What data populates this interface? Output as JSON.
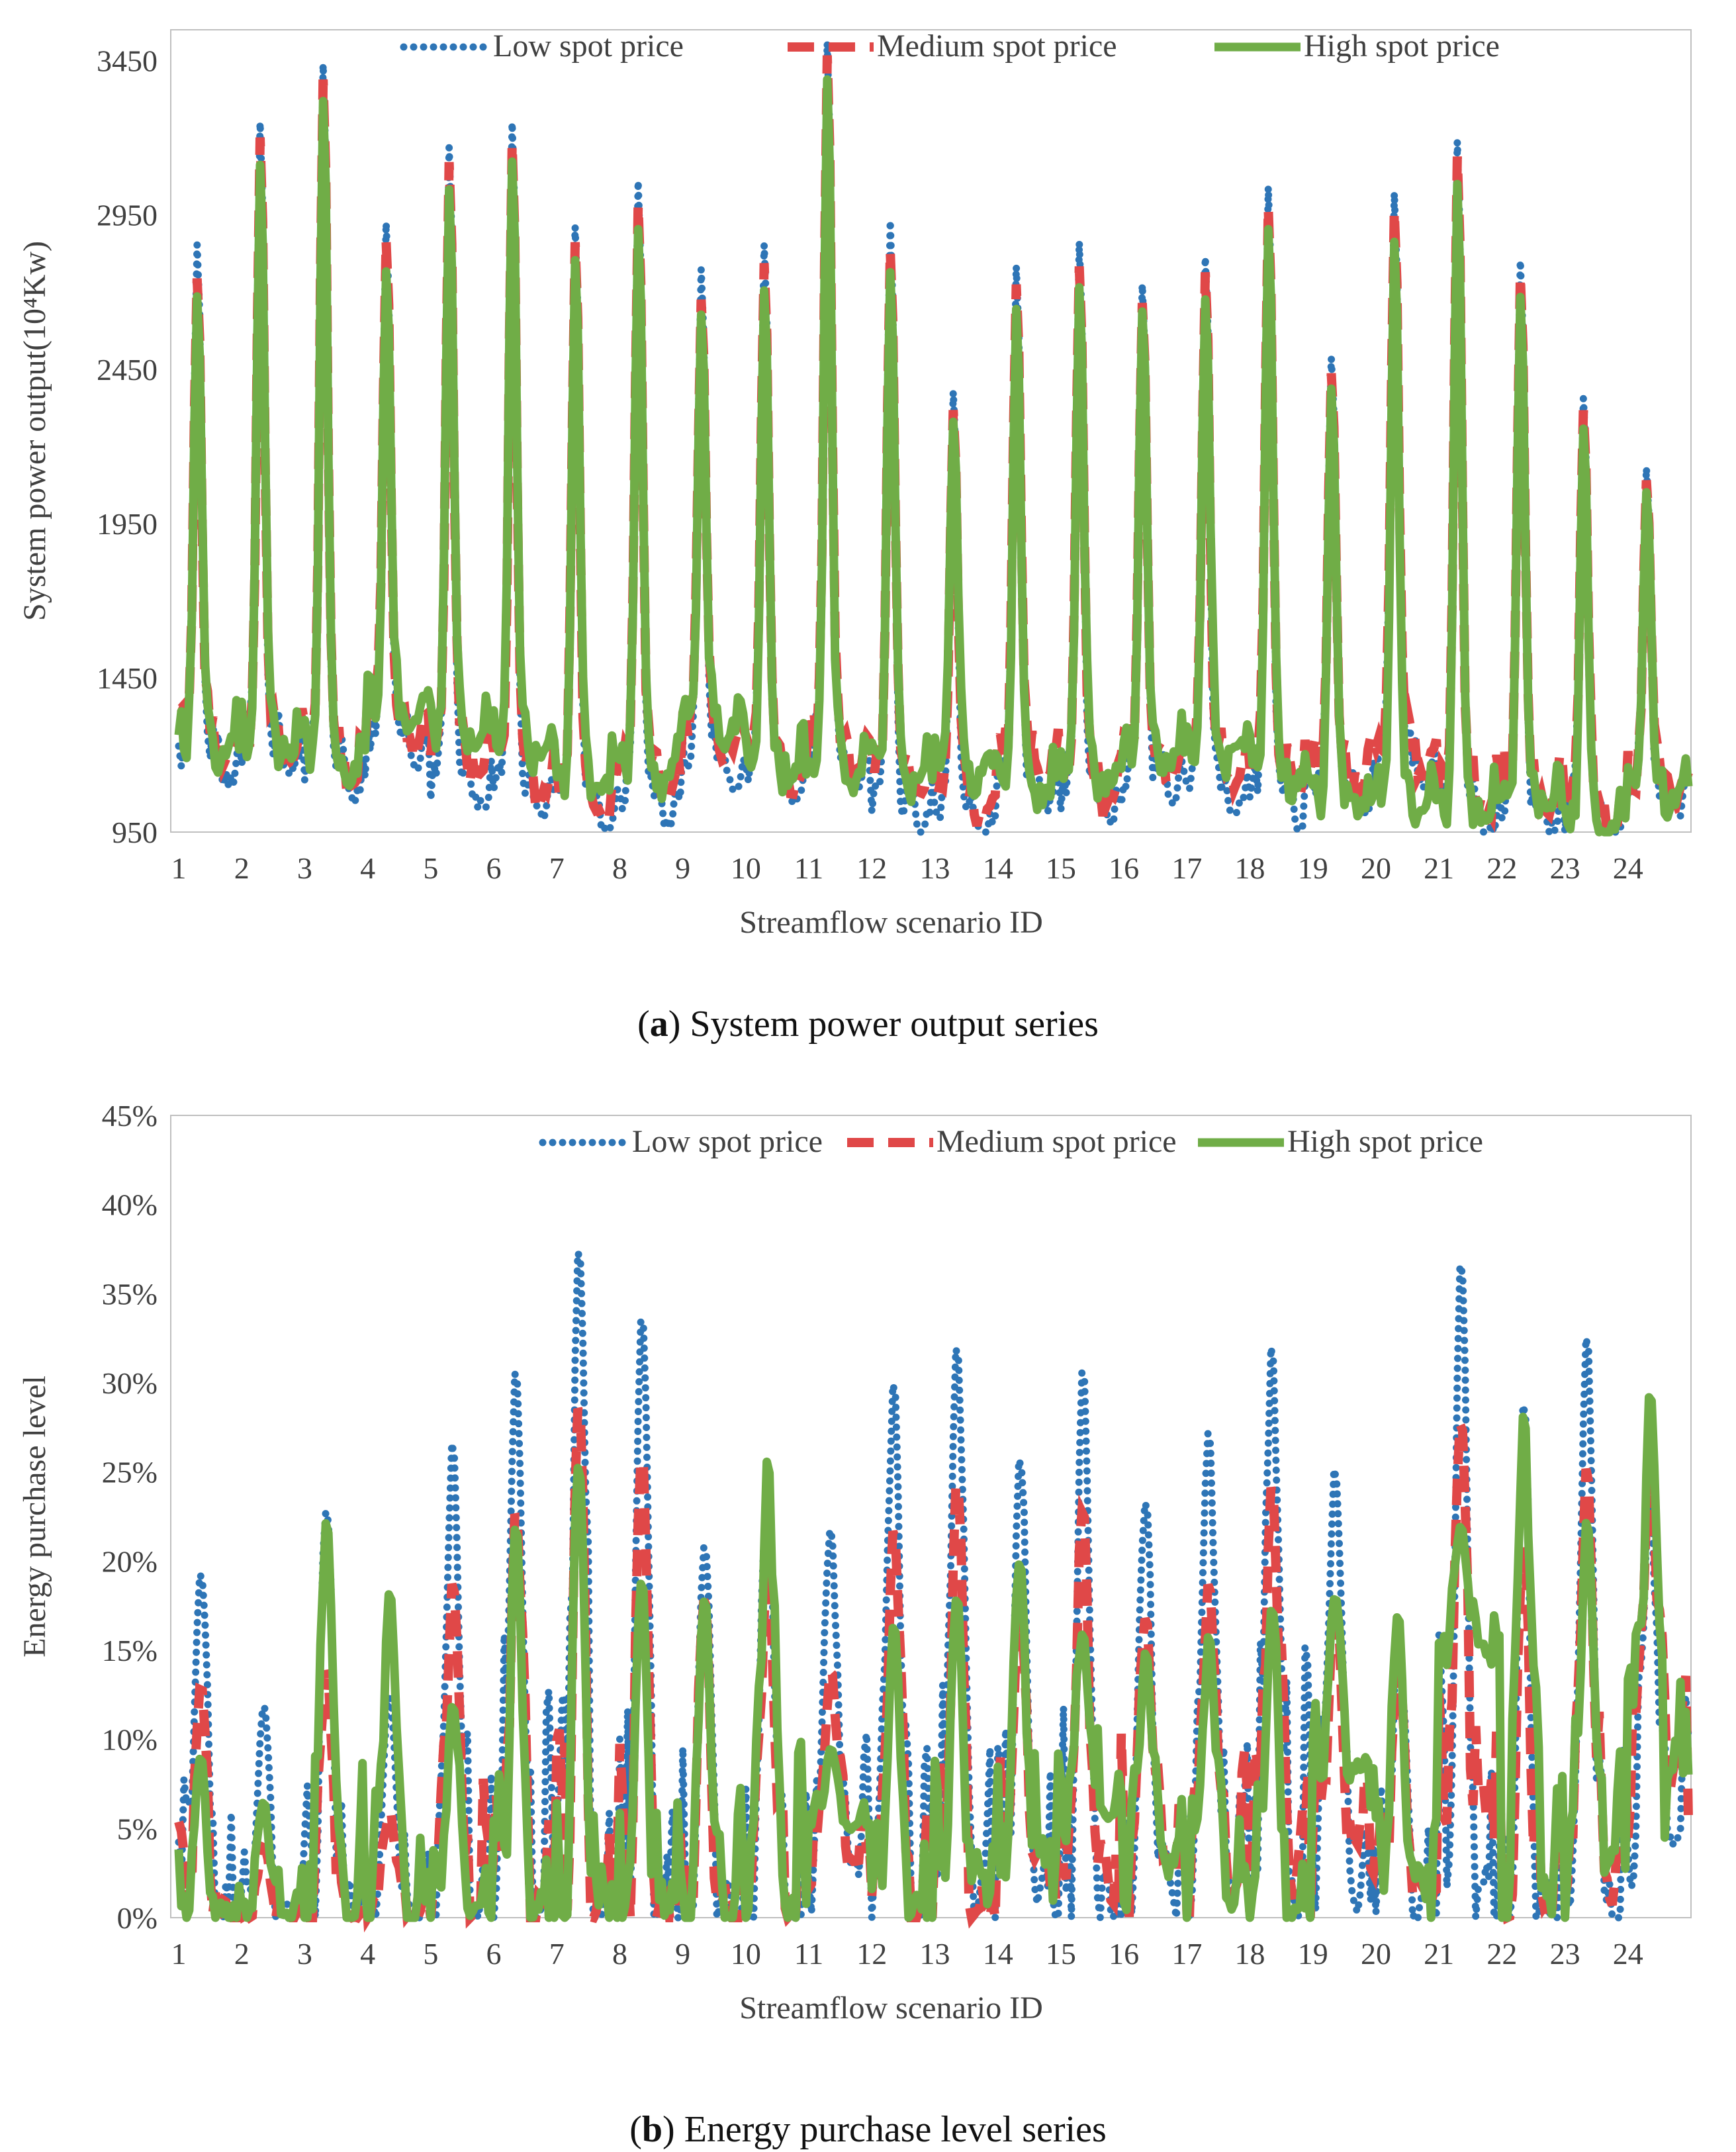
{
  "captions": {
    "a": {
      "letter": "a",
      "text": " System power output series"
    },
    "b": {
      "letter": "b",
      "text": " Energy purchase level series"
    }
  },
  "colors": {
    "low": "#2e75b6",
    "medium": "#e04848",
    "high": "#70ad47",
    "axis": "#bfbfbf",
    "text": "#404040"
  },
  "chart_data": [
    {
      "id": "a",
      "type": "line",
      "title": "",
      "xlabel": "Streamflow  scenario  ID",
      "ylabel": "System power output(10⁴Kw)",
      "ylim": [
        950,
        3550
      ],
      "yticks": [
        950,
        1450,
        1950,
        2450,
        2950,
        3450
      ],
      "ytick_labels": [
        "950",
        "1450",
        "1950",
        "2450",
        "2950",
        "3450"
      ],
      "x": [
        1,
        2,
        3,
        4,
        5,
        6,
        7,
        8,
        9,
        10,
        11,
        12,
        13,
        14,
        15,
        16,
        17,
        18,
        19,
        20,
        21,
        22,
        23,
        24
      ],
      "legend": [
        "Low spot price",
        "Medium spot price",
        "High  spot price"
      ],
      "legend_position": "top",
      "grid": false,
      "series": [
        {
          "name": "Low spot price",
          "style": "dotted",
          "peaks": [
            2870,
            3270,
            3460,
            2940,
            3190,
            3270,
            2930,
            3080,
            2790,
            2870,
            3530,
            2950,
            2390,
            2800,
            2880,
            2740,
            2830,
            3060,
            2500,
            3040,
            3210,
            2820,
            2370,
            2140
          ],
          "troughs": [
            1110,
            1130,
            1040,
            1170,
            1020,
            990,
            960,
            960,
            1100,
            1040,
            1090,
            940,
            930,
            1030,
            980,
            1060,
            1010,
            970,
            1020,
            1080,
            930,
            960,
            940,
            1020
          ]
        },
        {
          "name": "Medium spot price",
          "style": "dashed",
          "peaks": [
            2760,
            3220,
            3410,
            2880,
            3140,
            3200,
            2880,
            3000,
            2690,
            2810,
            3490,
            2850,
            2330,
            2740,
            2800,
            2680,
            2780,
            2990,
            2450,
            2980,
            3160,
            2770,
            2330,
            2100
          ],
          "troughs": [
            1180,
            1150,
            1090,
            1230,
            1120,
            1040,
            990,
            1060,
            1200,
            1090,
            1110,
            1070,
            1000,
            1110,
            1040,
            1130,
            1110,
            1070,
            1080,
            1130,
            990,
            1010,
            980,
            1050
          ]
        },
        {
          "name": "High  spot price",
          "style": "solid",
          "peaks": [
            2700,
            3130,
            3340,
            2780,
            3050,
            3140,
            2820,
            2920,
            2640,
            2720,
            3410,
            2780,
            2290,
            2660,
            2730,
            2650,
            2690,
            2920,
            2400,
            2880,
            3070,
            2700,
            2270,
            2060
          ],
          "troughs": [
            1200,
            1170,
            1100,
            1300,
            1200,
            1170,
            1060,
            1100,
            1250,
            1120,
            1080,
            1090,
            1130,
            1040,
            1090,
            1160,
            1180,
            1080,
            1000,
            1000,
            960,
            1000,
            940,
            1050
          ]
        }
      ]
    },
    {
      "id": "b",
      "type": "line",
      "title": "",
      "xlabel": "Streamflow  scenario  ID",
      "ylabel": "Energy purchase  level",
      "ylim": [
        0,
        45
      ],
      "yticks": [
        0,
        5,
        10,
        15,
        20,
        25,
        30,
        35,
        40,
        45
      ],
      "ytick_labels": [
        "0%",
        "5%",
        "10%",
        "15%",
        "20%",
        "25%",
        "30%",
        "35%",
        "40%",
        "45%"
      ],
      "x": [
        1,
        2,
        3,
        4,
        5,
        6,
        7,
        8,
        9,
        10,
        11,
        12,
        13,
        14,
        15,
        16,
        17,
        18,
        19,
        20,
        21,
        22,
        23,
        24
      ],
      "legend": [
        "Low spot price",
        "Medium spot price",
        "High  spot price"
      ],
      "legend_position": "top",
      "grid": false,
      "series": [
        {
          "name": "Low spot price",
          "style": "dotted",
          "peaks": [
            19.5,
            12,
            23,
            12.5,
            27,
            31,
            38,
            34,
            21,
            24,
            22,
            30.5,
            32.5,
            26,
            31,
            23.5,
            27.5,
            32.5,
            25.5,
            16,
            37,
            29,
            33,
            24
          ],
          "troughs": [
            0,
            0,
            0,
            0,
            0,
            0,
            0,
            0,
            0,
            0,
            3,
            0,
            0,
            1,
            0,
            2,
            2,
            1,
            1,
            0,
            1,
            0,
            0,
            4
          ]
        },
        {
          "name": "Medium spot price",
          "style": "dashed",
          "peaks": [
            13,
            4,
            14,
            6,
            19,
            23,
            29,
            26,
            18,
            20,
            14,
            22,
            24.5,
            17.5,
            23,
            17,
            19,
            24.5,
            18,
            14,
            28,
            21,
            25.5,
            25.5
          ],
          "troughs": [
            0,
            0,
            0,
            0,
            0,
            0,
            0,
            0,
            0,
            0,
            3,
            0,
            0,
            3,
            2,
            3,
            2,
            2,
            4,
            2,
            6,
            0,
            2,
            8
          ]
        },
        {
          "name": "High  spot price",
          "style": "solid",
          "peaks": [
            9,
            6.5,
            22.5,
            18.5,
            12,
            22,
            25.5,
            19,
            18,
            26,
            9.5,
            16.5,
            18,
            20,
            16,
            15,
            16,
            17.5,
            18,
            17,
            22,
            28.5,
            22.5,
            29.5
          ],
          "troughs": [
            0,
            0,
            0,
            0,
            0,
            0,
            0,
            0,
            0,
            0,
            5,
            0,
            2,
            3,
            6,
            3,
            1,
            0,
            8,
            1.5,
            15,
            1,
            3,
            8
          ]
        }
      ]
    }
  ]
}
